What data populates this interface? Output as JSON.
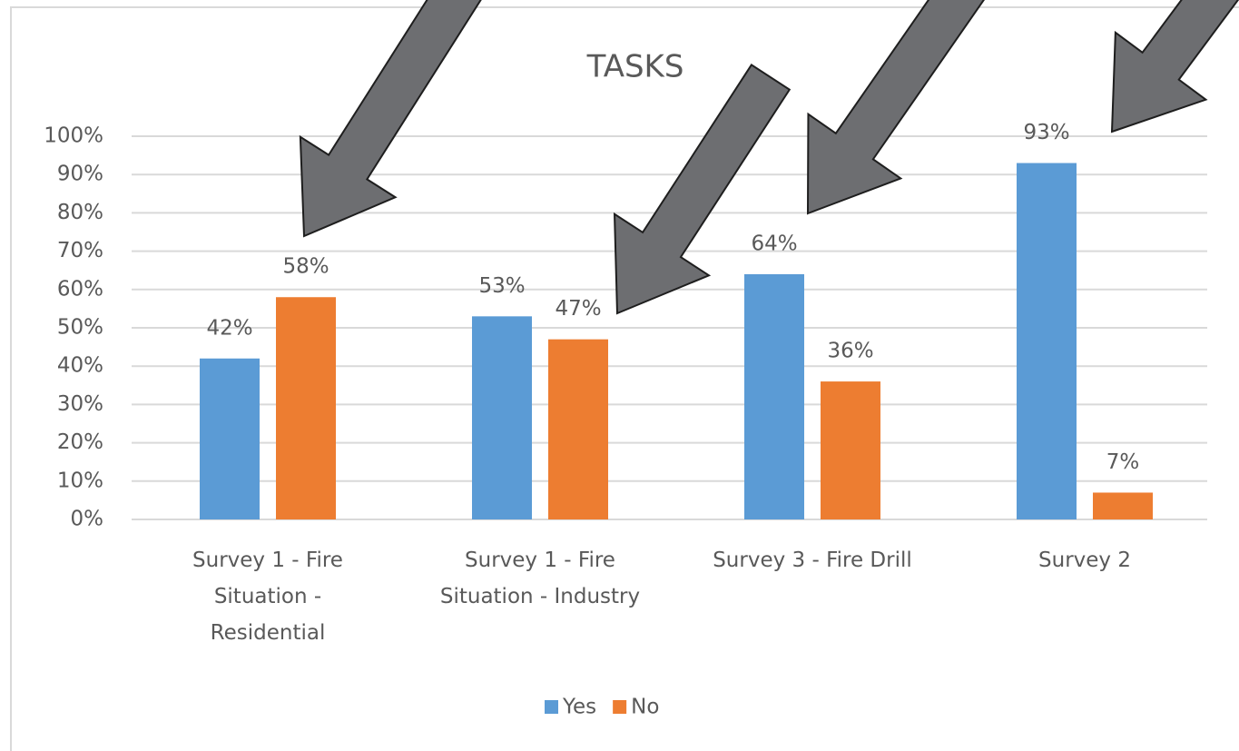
{
  "chart_data": {
    "type": "bar",
    "title": "TASKS",
    "categories": [
      "Survey 1 - Fire Situation - Residential",
      "Survey 1 - Fire Situation - Industry",
      "Survey 3 - Fire Drill",
      "Survey 2"
    ],
    "series": [
      {
        "name": "Yes",
        "color": "#5b9bd5",
        "values": [
          42,
          53,
          64,
          93
        ],
        "value_labels": [
          "42%",
          "53%",
          "64%",
          "93%"
        ]
      },
      {
        "name": "No",
        "color": "#ed7d31",
        "values": [
          58,
          47,
          36,
          7
        ],
        "value_labels": [
          "58%",
          "47%",
          "36%",
          "7%"
        ]
      }
    ],
    "ylim": [
      0,
      100
    ],
    "yticks": [
      {
        "value": 0,
        "label": "0%"
      },
      {
        "value": 10,
        "label": "10%"
      },
      {
        "value": 20,
        "label": "20%"
      },
      {
        "value": 30,
        "label": "30%"
      },
      {
        "value": 40,
        "label": "40%"
      },
      {
        "value": 50,
        "label": "50%"
      },
      {
        "value": 60,
        "label": "60%"
      },
      {
        "value": 70,
        "label": "70%"
      },
      {
        "value": 80,
        "label": "80%"
      },
      {
        "value": 90,
        "label": "90%"
      },
      {
        "value": 100,
        "label": "100%"
      }
    ],
    "grid": true,
    "legend": "bottom"
  }
}
